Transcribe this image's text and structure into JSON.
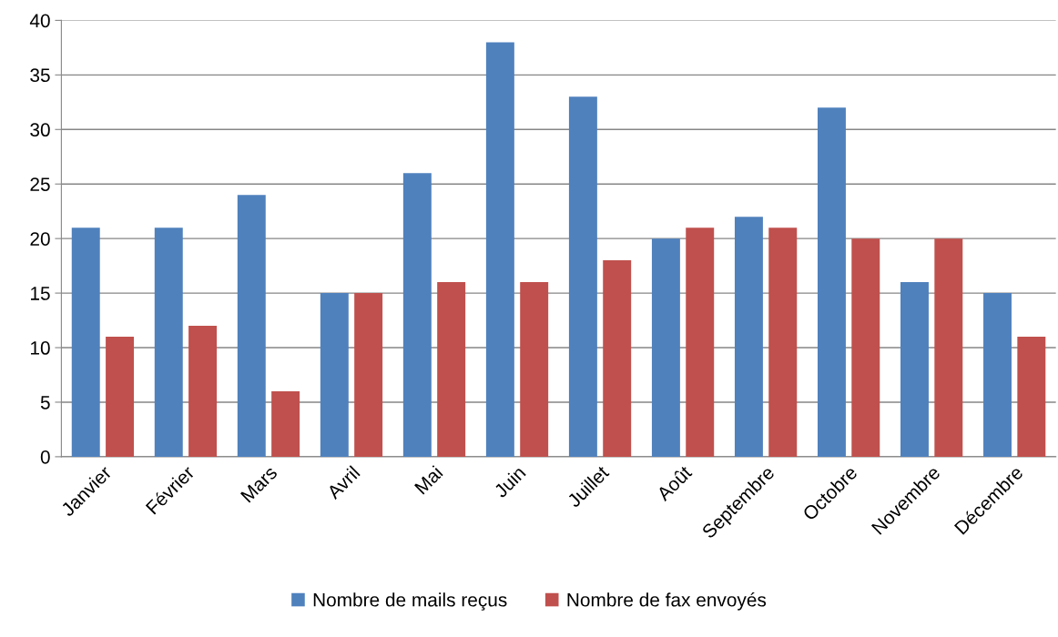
{
  "chart_data": {
    "type": "bar",
    "categories": [
      "Janvier",
      "Février",
      "Mars",
      "Avril",
      "Mai",
      "Juin",
      "Juillet",
      "Août",
      "Septembre",
      "Octobre",
      "Novembre",
      "Décembre"
    ],
    "series": [
      {
        "name": "Nombre de mails reçus",
        "color": "#4f81bd",
        "values": [
          21,
          21,
          24,
          15,
          26,
          38,
          33,
          20,
          22,
          32,
          16,
          15
        ]
      },
      {
        "name": "Nombre de fax envoyés",
        "color": "#c0504d",
        "values": [
          11,
          12,
          6,
          15,
          16,
          16,
          18,
          21,
          21,
          20,
          20,
          11
        ]
      }
    ],
    "ylim": [
      0,
      40
    ],
    "yticks": [
      0,
      5,
      10,
      15,
      20,
      25,
      30,
      35,
      40
    ],
    "grid": "y",
    "legend": "bottom"
  }
}
